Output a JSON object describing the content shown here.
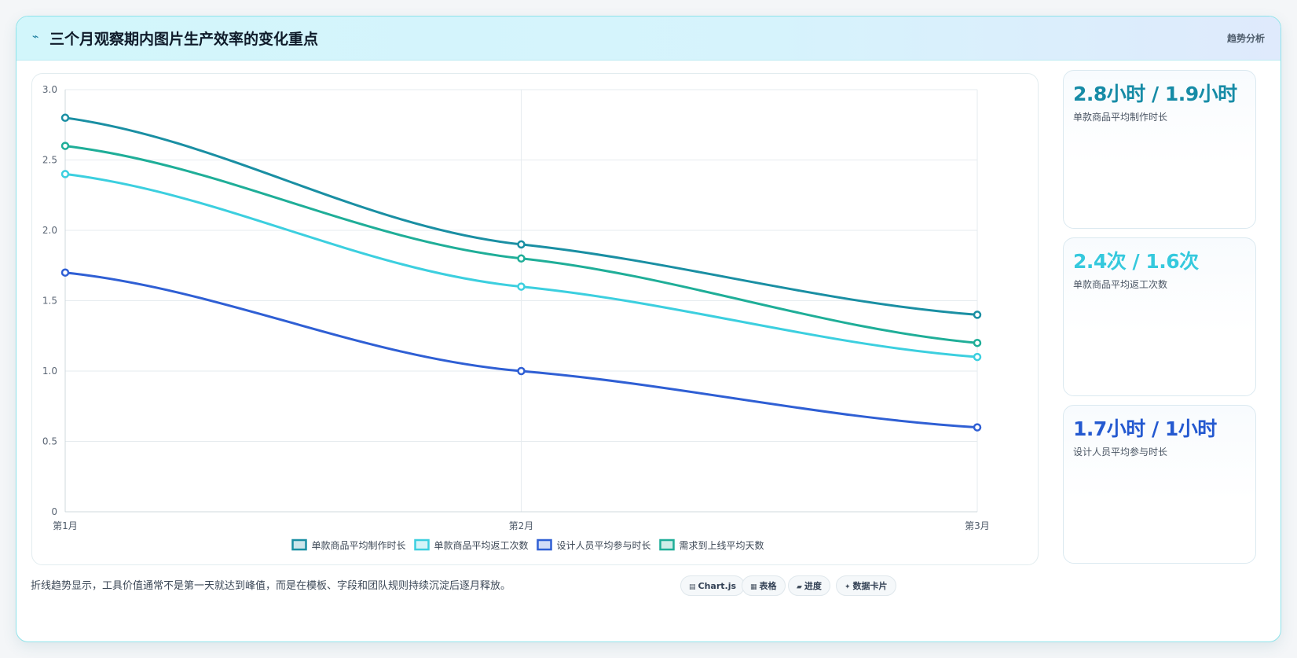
{
  "header": {
    "icon": "pulse-icon",
    "title": "三个月观察期内图片生产效率的变化重点",
    "tag": "趋势分析"
  },
  "chart_data": {
    "type": "line",
    "title": "",
    "xlabel": "",
    "ylabel": "",
    "categories": [
      "第1月",
      "第2月",
      "第3月"
    ],
    "ylim": [
      0,
      3.0
    ],
    "yticks": [
      "0",
      "0.5",
      "1.0",
      "1.5",
      "2.0",
      "2.5",
      "3.0"
    ],
    "grid": true,
    "legend_position": "bottom",
    "series": [
      {
        "name": "单款商品平均制作时长",
        "values": [
          2.8,
          1.9,
          1.4
        ],
        "color": "#1a8fa3"
      },
      {
        "name": "单款商品平均返工次数",
        "values": [
          2.4,
          1.6,
          1.1
        ],
        "color": "#3ccfdf"
      },
      {
        "name": "设计人员平均参与时长",
        "values": [
          1.7,
          1.0,
          0.6
        ],
        "color": "#2f5fd4"
      },
      {
        "name": "需求到上线平均天数",
        "values": [
          2.6,
          1.8,
          1.2
        ],
        "color": "#1fae98"
      }
    ]
  },
  "stats": [
    {
      "value": "2.8小时 / 1.9小时",
      "label": "单款商品平均制作时长",
      "color": "#168ba6"
    },
    {
      "value": "2.4次 / 1.6次",
      "label": "单款商品平均返工次数",
      "color": "#35c9dd"
    },
    {
      "value": "1.7小时 / 1小时",
      "label": "设计人员平均参与时长",
      "color": "#2459d0"
    }
  ],
  "footer": {
    "note": "折线趋势显示，工具价值通常不是第一天就达到峰值，而是在模板、字段和团队规则持续沉淀后逐月释放。",
    "pills": [
      {
        "icon": "chart-icon",
        "glyph": "▤",
        "label": "Chart.js"
      },
      {
        "icon": "table-icon",
        "glyph": "▦",
        "label": "表格"
      },
      {
        "icon": "progress-icon",
        "glyph": "▰",
        "label": "进度"
      },
      {
        "icon": "sparkle-icon",
        "glyph": "✦",
        "label": "数据卡片"
      }
    ]
  }
}
